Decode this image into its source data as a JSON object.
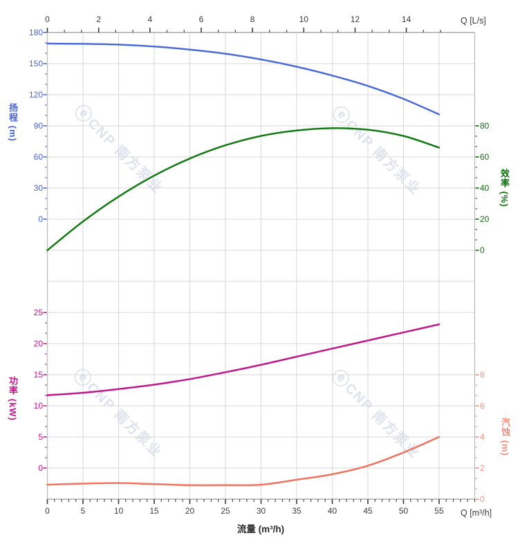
{
  "chart_data": {
    "type": "line",
    "title": "",
    "x_label_bottom": "流量 (m³/h)",
    "x_unit_bottom": "Q [m³/h]",
    "x_unit_top": "Q [L/s]",
    "x_m3h": [
      0,
      5,
      10,
      15,
      20,
      25,
      30,
      35,
      40,
      45,
      50,
      55
    ],
    "series": [
      {
        "id": "head",
        "label": "扬程",
        "unit": "m",
        "color": "#4a6ad8",
        "axis_side": "left-top",
        "axis_ticks": [
          0,
          30,
          60,
          90,
          120,
          150,
          180
        ],
        "values": [
          169.3,
          169.1,
          168.3,
          166.5,
          163.5,
          159.5,
          154.0,
          147.0,
          138.5,
          128.5,
          116.0,
          101.0
        ]
      },
      {
        "id": "efficiency",
        "label": "效率",
        "unit": "%",
        "color": "#127a12",
        "axis_side": "right-top",
        "axis_ticks": [
          0,
          20,
          40,
          60,
          80
        ],
        "values": [
          0,
          18.5,
          34.5,
          48,
          59,
          67.5,
          73.5,
          77,
          78.5,
          77.5,
          73.5,
          66
        ]
      },
      {
        "id": "power",
        "label": "功率",
        "unit": "kW",
        "color": "#c0188a",
        "axis_side": "left-bottom",
        "axis_ticks": [
          0,
          5,
          10,
          15,
          20,
          25
        ],
        "values": [
          11.7,
          12.1,
          12.7,
          13.4,
          14.3,
          15.4,
          16.6,
          17.9,
          19.2,
          20.5,
          21.8,
          23.1
        ]
      },
      {
        "id": "npsh",
        "label": "汽蚀",
        "unit": "m",
        "color": "#f0725f",
        "axis_side": "right-bottom",
        "axis_ticks": [
          0,
          2,
          4,
          6,
          8
        ],
        "values": [
          0.93,
          1.0,
          1.03,
          0.97,
          0.9,
          0.9,
          0.93,
          1.25,
          1.6,
          2.15,
          3.0,
          4.0
        ]
      }
    ],
    "x_axis_top": {
      "unit_label": "Q [L/s]",
      "ticks": [
        0,
        2,
        4,
        6,
        8,
        10,
        12,
        14
      ]
    },
    "x_axis_bottom": {
      "unit_label": "Q [m³/h]",
      "label": "流量 (m³/h)",
      "ticks": [
        0,
        5,
        10,
        15,
        20,
        25,
        30,
        35,
        40,
        45,
        50,
        55
      ]
    },
    "y_axis_titles": {
      "head": "扬程 (m)",
      "efficiency": "效率 (%)",
      "power": "功率 (kW)",
      "npsh": "汽蚀 (m)"
    },
    "grid": "on",
    "legend": "none"
  },
  "watermark": {
    "logo": "ⓔ",
    "text": "CNP 南方泵业",
    "color": "#dfe3ee"
  },
  "colors": {
    "head_label": "#4a64d8",
    "efficiency_label": "#0d6e0d",
    "power_label": "#c0188a",
    "npsh_label": "#f78f7f",
    "grid": "#d7d7d7",
    "axis_line": "#999999",
    "spine": "#bdbdbd",
    "tick_dark": "#3a3a3a"
  }
}
